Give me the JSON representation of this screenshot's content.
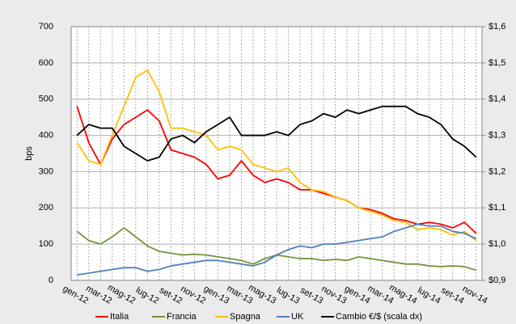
{
  "chart_data": {
    "type": "line",
    "y_label": "bps",
    "categories": [
      "gen-12",
      null,
      "mar-12",
      null,
      "mag-12",
      null,
      "lug-12",
      null,
      "set-12",
      null,
      "nov-12",
      null,
      "gen-13",
      null,
      "mar-13",
      null,
      "mag-13",
      null,
      "lug-13",
      null,
      "set-13",
      null,
      "nov-13",
      null,
      "gen-14",
      null,
      "mar-14",
      null,
      "mag-14",
      null,
      "lug-14",
      null,
      "set-14",
      null,
      "nov-14"
    ],
    "series": [
      {
        "name": "Italia",
        "color": "#ff0000",
        "values": [
          480,
          380,
          320,
          390,
          430,
          450,
          470,
          440,
          360,
          350,
          340,
          320,
          280,
          290,
          330,
          290,
          270,
          280,
          270,
          250,
          250,
          240,
          230,
          220,
          200,
          195,
          185,
          170,
          165,
          155,
          160,
          155,
          145,
          160,
          130
        ]
      },
      {
        "name": "Francia",
        "color": "#77933c",
        "values": [
          135,
          110,
          100,
          120,
          145,
          120,
          95,
          80,
          75,
          70,
          72,
          70,
          65,
          60,
          55,
          45,
          60,
          70,
          65,
          60,
          60,
          55,
          58,
          55,
          65,
          60,
          55,
          50,
          45,
          45,
          40,
          38,
          40,
          38,
          28
        ]
      },
      {
        "name": "Spagna",
        "color": "#ffc000",
        "values": [
          380,
          330,
          320,
          400,
          480,
          560,
          580,
          520,
          420,
          420,
          410,
          400,
          360,
          370,
          360,
          320,
          310,
          300,
          310,
          270,
          250,
          245,
          230,
          220,
          200,
          190,
          180,
          165,
          160,
          140,
          145,
          140,
          125,
          135,
          110
        ]
      },
      {
        "name": "UK",
        "color": "#4f81bd",
        "values": [
          15,
          20,
          25,
          30,
          35,
          35,
          25,
          30,
          40,
          45,
          50,
          55,
          55,
          50,
          45,
          40,
          50,
          70,
          85,
          95,
          90,
          100,
          100,
          105,
          110,
          115,
          120,
          135,
          145,
          155,
          150,
          150,
          135,
          130,
          115
        ]
      },
      {
        "name": "Cambio €/$ (scala dx)",
        "color": "#000000",
        "axis": "y2",
        "values": [
          1.3,
          1.33,
          1.32,
          1.32,
          1.27,
          1.25,
          1.23,
          1.24,
          1.29,
          1.3,
          1.28,
          1.31,
          1.33,
          1.35,
          1.3,
          1.3,
          1.3,
          1.31,
          1.3,
          1.33,
          1.34,
          1.36,
          1.35,
          1.37,
          1.36,
          1.37,
          1.38,
          1.38,
          1.38,
          1.36,
          1.35,
          1.33,
          1.29,
          1.27,
          1.24
        ]
      }
    ],
    "ylim": [
      0,
      700
    ],
    "yticks": [
      0,
      100,
      200,
      300,
      400,
      500,
      600,
      700
    ],
    "y2lim": [
      0.9,
      1.6
    ],
    "y2ticks": [
      {
        "value": 0.9,
        "label": "$0,9"
      },
      {
        "value": 1.0,
        "label": "$1,0"
      },
      {
        "value": 1.1,
        "label": "$1,1"
      },
      {
        "value": 1.2,
        "label": "$1,2"
      },
      {
        "value": 1.3,
        "label": "$1,3"
      },
      {
        "value": 1.4,
        "label": "$1,4"
      },
      {
        "value": 1.5,
        "label": "$1,5"
      },
      {
        "value": 1.6,
        "label": "$1,6"
      }
    ],
    "grid": true,
    "legend": "bottom"
  }
}
